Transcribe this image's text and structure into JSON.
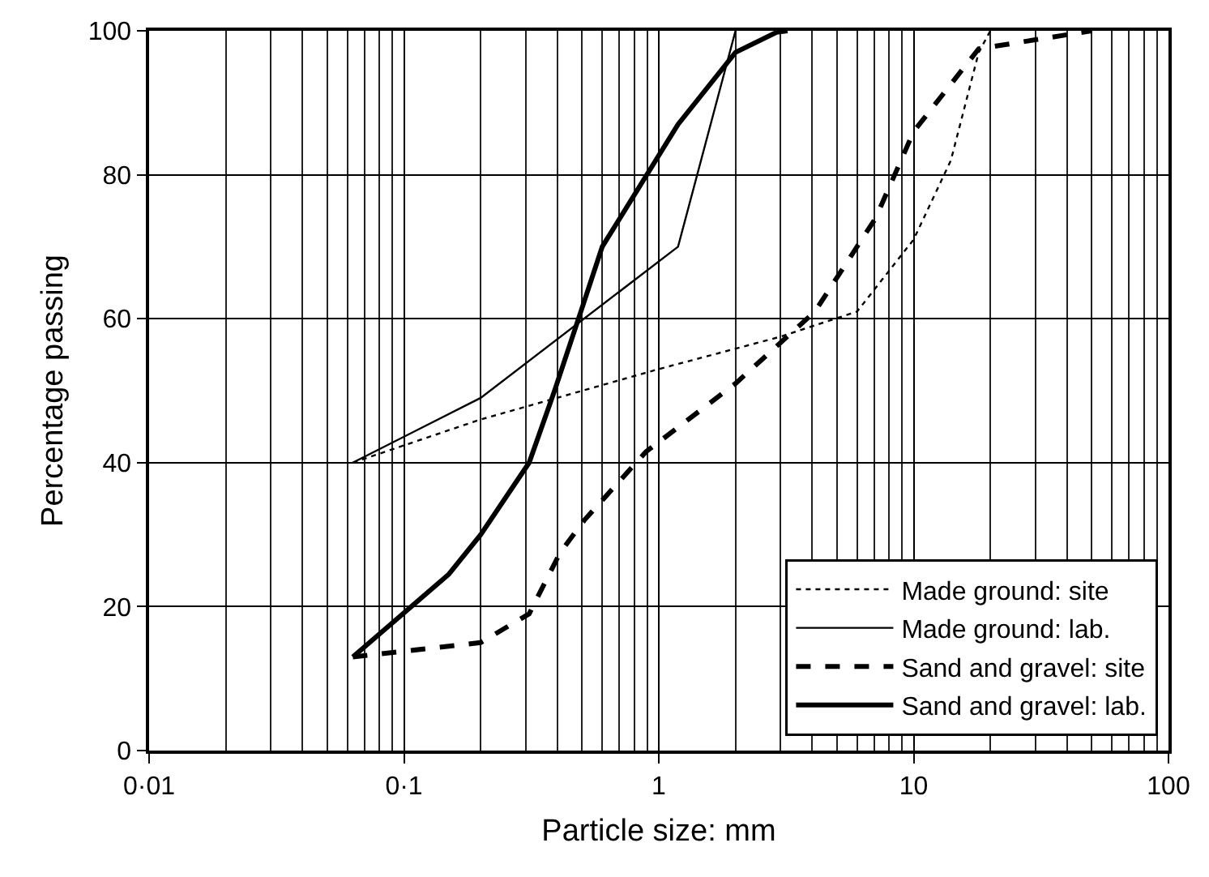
{
  "chart_data": {
    "type": "line",
    "xlabel": "Particle size: mm",
    "ylabel": "Percentage passing",
    "log": "x",
    "xlim": [
      0.01,
      100
    ],
    "xticks": [
      {
        "value": 0.01,
        "label": "0·01"
      },
      {
        "value": 0.1,
        "label": "0·1"
      },
      1,
      10,
      100
    ],
    "ylim": [
      0,
      100
    ],
    "yticks": [
      0,
      20,
      40,
      60,
      80,
      100
    ],
    "grid": true,
    "legend": "bottom right",
    "marker": "none",
    "series": [
      {
        "name": "Made ground: site",
        "color": "#000000",
        "line_style": "dotted",
        "x": [
          0.063,
          0.2,
          1,
          3,
          6,
          10,
          14,
          18,
          20
        ],
        "values": [
          40,
          46,
          53,
          57.5,
          61,
          71,
          82,
          97,
          100
        ]
      },
      {
        "name": "Made ground: lab.",
        "color": "#000000",
        "line_style": "solid",
        "x": [
          0.063,
          0.2,
          1.19,
          2
        ],
        "values": [
          40,
          49,
          70,
          100
        ]
      },
      {
        "name": "Sand and gravel: site",
        "color": "#000000",
        "line_style": "dashed",
        "x": [
          0.063,
          0.2,
          0.31,
          0.41,
          0.51,
          0.89,
          2,
          4.1,
          7.1,
          10,
          18,
          50
        ],
        "values": [
          13,
          15,
          19,
          27.5,
          32,
          41.5,
          51,
          61,
          74,
          86,
          97.5,
          100
        ]
      },
      {
        "name": "Sand and gravel: lab.",
        "color": "#000000",
        "line_style": "solid",
        "x": [
          0.063,
          0.15,
          0.2,
          0.31,
          0.39,
          0.5,
          0.6,
          1.19,
          2,
          2.9,
          3.2
        ],
        "values": [
          13,
          24.5,
          30,
          40,
          50,
          61.5,
          70,
          87,
          97,
          99.8,
          100
        ]
      }
    ]
  }
}
